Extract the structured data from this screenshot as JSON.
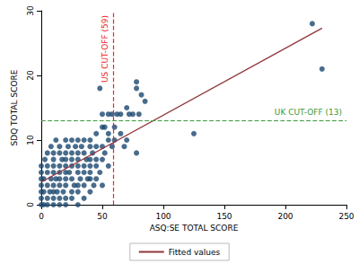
{
  "chart_data": {
    "type": "scatter",
    "xlabel": "ASQ:SE TOTAL SCORE",
    "ylabel": "SDQ TOTAL SCORE",
    "xlim": [
      0,
      250
    ],
    "xticks": [
      0,
      50,
      100,
      150,
      200,
      250
    ],
    "ylim": [
      0,
      30
    ],
    "yticks": [
      0,
      10,
      20,
      30
    ],
    "grid": false,
    "legend": "bottom",
    "series": [
      {
        "type": "scatter",
        "color": "#1a476f",
        "marker": "circle",
        "x": [
          0,
          0,
          0,
          0,
          0,
          0,
          0,
          2,
          2,
          2,
          3,
          5,
          5,
          5,
          5,
          5,
          5,
          7,
          8,
          8,
          10,
          10,
          10,
          10,
          10,
          10,
          10,
          10,
          12,
          12,
          13,
          15,
          15,
          15,
          15,
          15,
          15,
          15,
          15,
          17,
          18,
          20,
          20,
          20,
          20,
          20,
          20,
          20,
          20,
          20,
          22,
          23,
          25,
          25,
          25,
          25,
          25,
          25,
          25,
          27,
          28,
          30,
          30,
          30,
          30,
          30,
          30,
          30,
          30,
          32,
          33,
          35,
          35,
          35,
          35,
          35,
          35,
          37,
          38,
          40,
          40,
          40,
          40,
          40,
          40,
          40,
          42,
          43,
          45,
          45,
          45,
          45,
          45,
          48,
          48,
          50,
          50,
          50,
          50,
          50,
          52,
          52,
          55,
          55,
          55,
          55,
          58,
          58,
          60,
          60,
          62,
          65,
          65,
          68,
          70,
          70,
          72,
          75,
          78,
          78,
          78,
          80,
          82,
          85,
          125,
          222,
          230
        ],
        "values": [
          0,
          1,
          2,
          3,
          4,
          5,
          6,
          0,
          2,
          4,
          7,
          0,
          1,
          3,
          5,
          6,
          8,
          2,
          4,
          9,
          0,
          1,
          2,
          3,
          5,
          6,
          7,
          8,
          4,
          10,
          2,
          0,
          1,
          3,
          4,
          5,
          6,
          8,
          9,
          7,
          2,
          0,
          1,
          3,
          4,
          5,
          6,
          7,
          8,
          10,
          9,
          5,
          1,
          2,
          4,
          6,
          7,
          8,
          10,
          3,
          9,
          0,
          2,
          3,
          5,
          6,
          7,
          8,
          10,
          4,
          9,
          1,
          3,
          5,
          6,
          8,
          10,
          7,
          4,
          2,
          4,
          5,
          6,
          7,
          9,
          10,
          8,
          3,
          4,
          6,
          7,
          9,
          11,
          5,
          18,
          3,
          7,
          9,
          12,
          14,
          8,
          12,
          6,
          10,
          11,
          14,
          9,
          14,
          12,
          10,
          14,
          11,
          14,
          9,
          15,
          10,
          14,
          14,
          8,
          18,
          19,
          14,
          17,
          16,
          11,
          28,
          21
        ]
      },
      {
        "name": "Fitted values",
        "type": "line",
        "color": "#90353b",
        "line_style": "solid",
        "x": [
          0,
          230
        ],
        "values": [
          3.5,
          27.3
        ]
      }
    ],
    "annotations": [
      {
        "text": "US CUT-OFF (59)",
        "x": 59,
        "color": "#e8262a",
        "line_style": "dashed"
      },
      {
        "text": "UK CUT-OFF (13)",
        "y": 13,
        "color": "#3a9a3a",
        "line_style": "dashed"
      }
    ]
  }
}
